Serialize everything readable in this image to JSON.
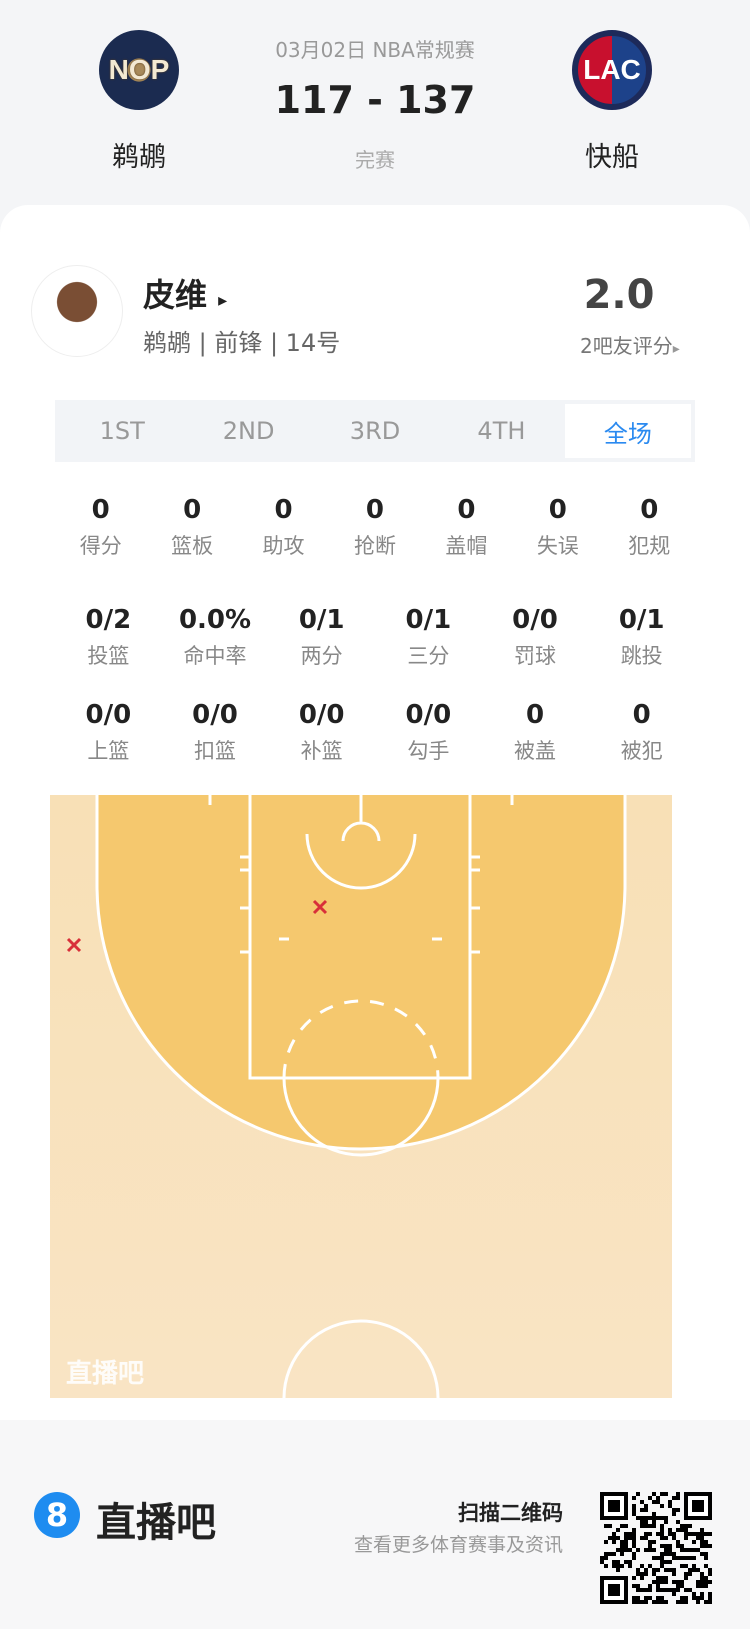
{
  "match": {
    "date_league": "03月02日 NBA常规赛",
    "score": "117 - 137",
    "status": "完赛",
    "home": {
      "abbr": "NOP",
      "name": "鹈鹕"
    },
    "away": {
      "abbr": "LAC",
      "name": "快船"
    }
  },
  "player": {
    "name": "皮维",
    "arrow": "▸",
    "info": "鹈鹕 | 前锋 | 14号",
    "rating": "2.0",
    "rating_label": "2吧友评分",
    "rating_arrow": "▸"
  },
  "tabs": [
    {
      "label": "1ST"
    },
    {
      "label": "2ND"
    },
    {
      "label": "3RD"
    },
    {
      "label": "4TH"
    },
    {
      "label": "全场",
      "active": true
    }
  ],
  "stats_row1": [
    {
      "v": "0",
      "l": "得分"
    },
    {
      "v": "0",
      "l": "篮板"
    },
    {
      "v": "0",
      "l": "助攻"
    },
    {
      "v": "0",
      "l": "抢断"
    },
    {
      "v": "0",
      "l": "盖帽"
    },
    {
      "v": "0",
      "l": "失误"
    },
    {
      "v": "0",
      "l": "犯规"
    }
  ],
  "stats_row2": [
    {
      "v": "0/2",
      "l": "投篮"
    },
    {
      "v": "0.0%",
      "l": "命中率"
    },
    {
      "v": "0/1",
      "l": "两分"
    },
    {
      "v": "0/1",
      "l": "三分"
    },
    {
      "v": "0/0",
      "l": "罚球"
    },
    {
      "v": "0/1",
      "l": "跳投"
    }
  ],
  "stats_row3": [
    {
      "v": "0/0",
      "l": "上篮"
    },
    {
      "v": "0/0",
      "l": "扣篮"
    },
    {
      "v": "0/0",
      "l": "补篮"
    },
    {
      "v": "0/0",
      "l": "勾手"
    },
    {
      "v": "0",
      "l": "被盖"
    },
    {
      "v": "0",
      "l": "被犯"
    }
  ],
  "shot_chart": {
    "watermark": "直播吧",
    "shots": [
      {
        "result": "miss",
        "zone": "paint"
      },
      {
        "result": "miss",
        "zone": "left-corner-three"
      }
    ],
    "miss_color": "#d8303a",
    "paint_color": "#f5c86e",
    "court_color": "#f8e2bd"
  },
  "footer": {
    "brand": "直播吧",
    "brand_icon": "8",
    "scan": "扫描二维码",
    "sub": "查看更多体育赛事及资讯",
    "accent": "#1e8cf0"
  }
}
